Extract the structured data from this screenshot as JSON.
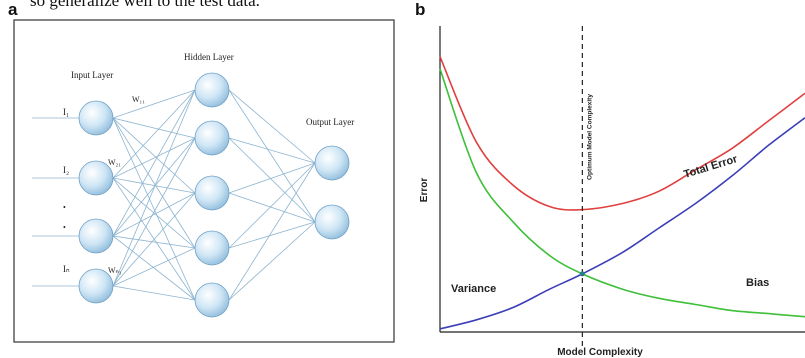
{
  "header_text": "so generalize well to the test data.",
  "panel_a": {
    "letter": "a",
    "input_layer_label": "Input Layer",
    "hidden_layer_label": "Hidden Layer",
    "output_layer_label": "Output Layer",
    "input_labels": [
      "I₁",
      "I₂",
      "•",
      "•",
      "Iₙ"
    ],
    "weight_labels": [
      "W₁₁",
      "W₂₁",
      "Wₙ₁"
    ]
  },
  "panel_b": {
    "letter": "b",
    "colors": {
      "total": "#e0403f",
      "variance": "#3fbf3a",
      "bias": "#3b3fb8"
    }
  },
  "chart_data": {
    "type": "line",
    "title": "",
    "xlabel": "Model Complexity",
    "ylabel": "Error",
    "annotation": "Optimum Model Complexity",
    "x_ticks": "none",
    "y_ticks": "none",
    "grid": false,
    "xlim": [
      0,
      10
    ],
    "ylim": [
      0,
      10
    ],
    "optimum_x": 3.9,
    "series": [
      {
        "name": "Total Error",
        "color": "#e0403f",
        "x": [
          0,
          1,
          2,
          3,
          3.9,
          5,
          6,
          7,
          8,
          9,
          10
        ],
        "y": [
          9.0,
          6.2,
          4.8,
          4.1,
          4.0,
          4.2,
          4.6,
          5.3,
          6.0,
          6.9,
          7.8
        ]
      },
      {
        "name": "Variance",
        "color": "#3fbf3a",
        "x": [
          0,
          1,
          2,
          3,
          3.9,
          5,
          6,
          7,
          8,
          9,
          10
        ],
        "y": [
          8.6,
          5.2,
          3.6,
          2.5,
          1.9,
          1.4,
          1.1,
          0.9,
          0.7,
          0.6,
          0.5
        ]
      },
      {
        "name": "Bias",
        "color": "#3b3fb8",
        "x": [
          0,
          1,
          2,
          3,
          3.9,
          5,
          6,
          7,
          8,
          9,
          10
        ],
        "y": [
          0.1,
          0.4,
          0.8,
          1.4,
          1.9,
          2.6,
          3.4,
          4.2,
          5.1,
          6.1,
          7.0
        ]
      }
    ]
  }
}
